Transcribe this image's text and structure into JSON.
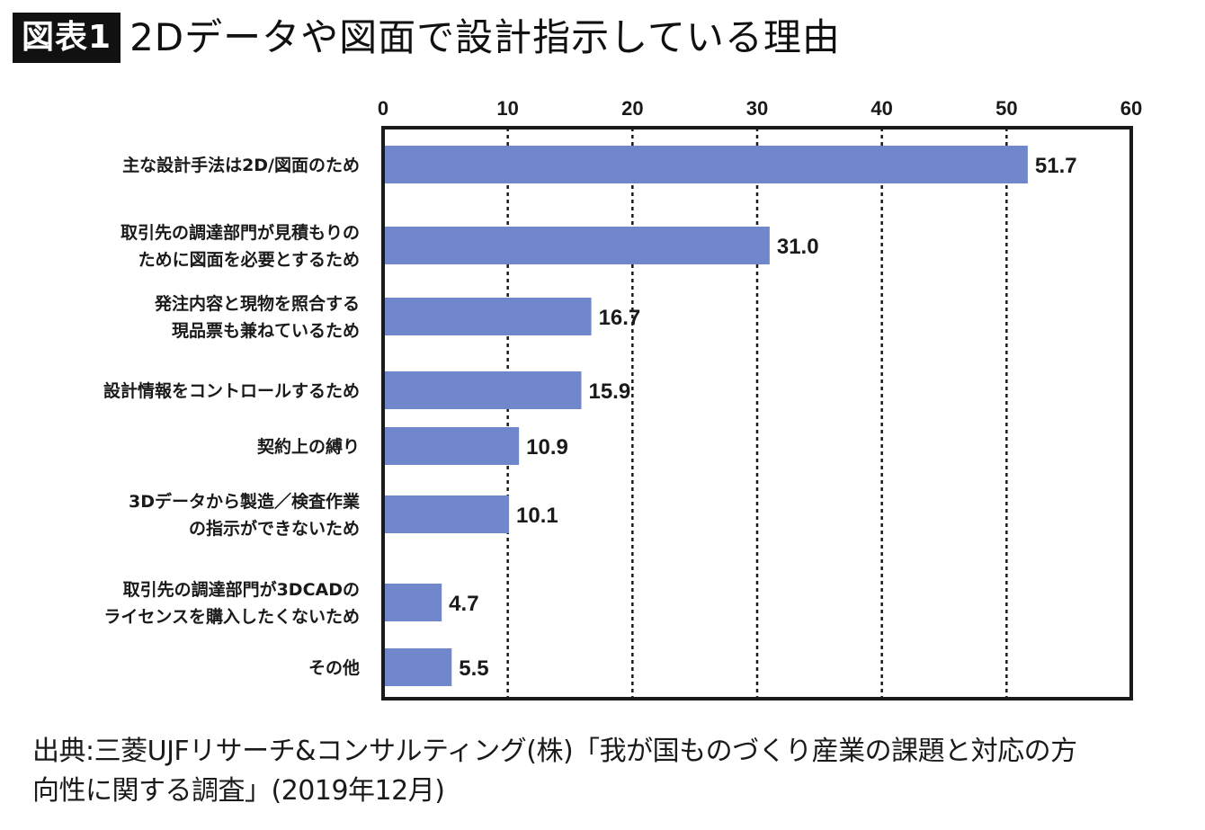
{
  "header": {
    "badge": "図表1",
    "title": "2Dデータや図面で設計指示している理由"
  },
  "chart_data": {
    "type": "bar",
    "orientation": "horizontal",
    "title": "2Dデータや図面で設計指示している理由",
    "xlabel": "",
    "ylabel": "",
    "xlim": [
      0,
      60
    ],
    "ticks": [
      0,
      10,
      20,
      30,
      40,
      50,
      60
    ],
    "grid": "dotted-vertical",
    "bar_color": "#7187cc",
    "categories": [
      [
        "主な設計手法は2D/図面のため"
      ],
      [
        "取引先の調達部門が見積もりの",
        "ために図面を必要とするため"
      ],
      [
        "発注内容と現物を照合する",
        "現品票も兼ねているため"
      ],
      [
        "設計情報をコントロールするため"
      ],
      [
        "契約上の縛り"
      ],
      [
        "3Dデータから製造／検査作業",
        "の指示ができないため"
      ],
      [
        "取引先の調達部門が3DCADの",
        "ライセンスを購入したくないため"
      ],
      [
        "その他"
      ]
    ],
    "values": [
      51.7,
      31.0,
      16.7,
      15.9,
      10.9,
      10.1,
      4.7,
      5.5
    ],
    "value_labels": [
      "51.7",
      "31.0",
      "16.7",
      "15.9",
      "10.9",
      "10.1",
      "4.7",
      "5.5"
    ]
  },
  "footer": {
    "source_line1": "出典:三菱UJFリサーチ&コンサルティング(株)「我が国ものづくり産業の課題と対応の方",
    "source_line2": "向性に関する調査」(2019年12月)"
  }
}
